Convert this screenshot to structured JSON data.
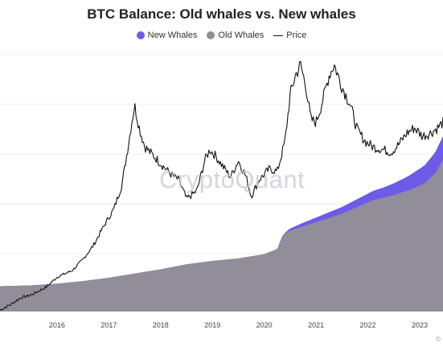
{
  "chart_data": {
    "type": "area",
    "title": "BTC Balance: Old whales vs. New whales",
    "xlabel": "",
    "ylabel": "",
    "grid": true,
    "legend_position": "top-center",
    "x_range": [
      2015.4,
      2023.95
    ],
    "x_ticks": [
      "2016",
      "2017",
      "2018",
      "2019",
      "2020",
      "2021",
      "2022",
      "2023"
    ],
    "watermark": "CryptoQuant",
    "copyright": "©",
    "series": [
      {
        "name": "New Whales",
        "color": "#6c5ce7",
        "kind": "area-stacked",
        "x": [
          2015.4,
          2020.85,
          2020.95,
          2021.2,
          2021.6,
          2022.0,
          2022.4,
          2022.8,
          2023.2,
          2023.5,
          2023.75,
          2023.95
        ],
        "values": [
          0,
          0,
          1,
          2,
          3,
          4,
          5,
          6,
          8,
          10,
          12,
          14
        ]
      },
      {
        "name": "Old Whales",
        "color": "#918d99",
        "kind": "area",
        "x": [
          2015.4,
          2016.0,
          2016.5,
          2017.0,
          2017.5,
          2018.0,
          2018.5,
          2019.0,
          2019.5,
          2020.0,
          2020.5,
          2020.75,
          2020.85,
          2021.0,
          2021.3,
          2021.6,
          2022.0,
          2022.3,
          2022.6,
          2023.0,
          2023.3,
          2023.6,
          2023.8,
          2023.95
        ],
        "values": [
          15,
          15.5,
          16.5,
          18,
          20,
          22.5,
          25,
          28,
          30,
          31.5,
          34,
          37,
          45,
          48,
          51,
          54,
          58,
          62,
          66,
          69,
          72,
          76,
          82,
          90
        ]
      },
      {
        "name": "Price",
        "color": "#111111",
        "kind": "line",
        "x": [
          2015.4,
          2015.6,
          2015.8,
          2016.0,
          2016.3,
          2016.5,
          2016.8,
          2017.0,
          2017.2,
          2017.4,
          2017.6,
          2017.75,
          2017.85,
          2017.95,
          2018.0,
          2018.1,
          2018.2,
          2018.35,
          2018.5,
          2018.7,
          2018.85,
          2019.0,
          2019.2,
          2019.35,
          2019.45,
          2019.55,
          2019.7,
          2019.85,
          2020.0,
          2020.15,
          2020.25,
          2020.4,
          2020.6,
          2020.75,
          2020.9,
          2021.0,
          2021.1,
          2021.2,
          2021.3,
          2021.4,
          2021.5,
          2021.6,
          2021.75,
          2021.85,
          2022.0,
          2022.15,
          2022.3,
          2022.45,
          2022.6,
          2022.8,
          2022.95,
          2023.1,
          2023.25,
          2023.4,
          2023.55,
          2023.7,
          2023.85,
          2023.95
        ],
        "values": [
          1,
          5,
          10,
          12,
          18,
          25,
          30,
          38,
          48,
          62,
          75,
          92,
          115,
          140,
          150,
          132,
          120,
          114,
          108,
          100,
          96,
          82,
          88,
          110,
          118,
          114,
          106,
          98,
          110,
          98,
          84,
          96,
          104,
          102,
          124,
          158,
          172,
          180,
          165,
          140,
          138,
          150,
          172,
          180,
          164,
          152,
          132,
          124,
          120,
          118,
          116,
          122,
          130,
          134,
          128,
          130,
          134,
          138
        ]
      }
    ]
  }
}
